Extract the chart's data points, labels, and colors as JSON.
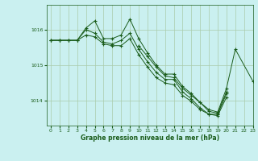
{
  "title": "Graphe pression niveau de la mer (hPa)",
  "bg_color": "#caf0f0",
  "grid_color": "#aaccaa",
  "line_color": "#1a5c1a",
  "xlim": [
    -0.5,
    23
  ],
  "ylim": [
    1013.3,
    1016.7
  ],
  "yticks": [
    1014,
    1015,
    1016
  ],
  "xticks": [
    0,
    1,
    2,
    3,
    4,
    5,
    6,
    7,
    8,
    9,
    10,
    11,
    12,
    13,
    14,
    15,
    16,
    17,
    18,
    19,
    20,
    21,
    22,
    23
  ],
  "series": [
    {
      "x": [
        0,
        1,
        2,
        3,
        4,
        5,
        6,
        7,
        8,
        9,
        10,
        11,
        12,
        13,
        14,
        15,
        16,
        17,
        18,
        19,
        20
      ],
      "y": [
        1015.7,
        1015.7,
        1015.7,
        1015.7,
        1016.05,
        1016.25,
        1015.75,
        1015.75,
        1015.85,
        1016.3,
        1015.75,
        1015.35,
        1015.0,
        1014.75,
        1014.75,
        1014.4,
        1014.2,
        1013.95,
        1013.7,
        1013.65,
        1014.25
      ]
    },
    {
      "x": [
        0,
        1,
        2,
        3,
        4,
        5,
        6,
        7,
        8,
        9,
        10,
        11,
        12,
        13,
        14,
        15,
        16,
        17,
        18,
        19,
        20
      ],
      "y": [
        1015.7,
        1015.7,
        1015.7,
        1015.7,
        1016.0,
        1015.9,
        1015.65,
        1015.6,
        1015.7,
        1015.9,
        1015.45,
        1015.1,
        1014.8,
        1014.6,
        1014.6,
        1014.25,
        1014.05,
        1013.8,
        1013.62,
        1013.58,
        1014.1
      ]
    },
    {
      "x": [
        0,
        1,
        2,
        3,
        4,
        5,
        6,
        7,
        8,
        9,
        10,
        11,
        12,
        13,
        14,
        15,
        16,
        17,
        18,
        19,
        20
      ],
      "y": [
        1015.7,
        1015.7,
        1015.7,
        1015.7,
        1015.85,
        1015.8,
        1015.6,
        1015.55,
        1015.55,
        1015.75,
        1015.3,
        1014.95,
        1014.65,
        1014.5,
        1014.45,
        1014.15,
        1013.98,
        1013.75,
        1013.62,
        1013.62,
        1014.2
      ]
    },
    {
      "x": [
        10,
        11,
        12,
        13,
        14,
        15,
        16,
        17,
        18,
        19,
        20,
        21,
        23
      ],
      "y": [
        1015.55,
        1015.25,
        1014.95,
        1014.7,
        1014.65,
        1014.35,
        1014.15,
        1013.95,
        1013.75,
        1013.68,
        1014.35,
        1015.45,
        1014.55
      ]
    }
  ]
}
